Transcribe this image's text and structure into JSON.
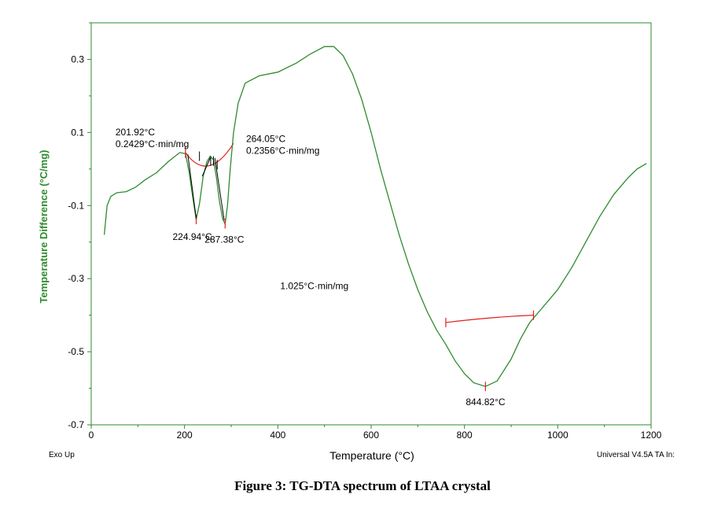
{
  "chart_data": {
    "type": "line",
    "xlabel": "Temperature (°C)",
    "ylabel": "Temperature Difference (°C/mg)",
    "xlim": [
      0,
      1200
    ],
    "ylim": [
      -0.7,
      0.4
    ],
    "x_ticks": [
      "0",
      "200",
      "400",
      "600",
      "800",
      "1000",
      "1200"
    ],
    "y_ticks": [
      "0.3",
      "0.1",
      "-0.1",
      "-0.3",
      "-0.5",
      "-0.7"
    ],
    "line_color": "#2e8b2e",
    "annotation_color": "#e02020",
    "grid": false,
    "series": [
      {
        "x": [
          28,
          34,
          42,
          55,
          75,
          95,
          115,
          140,
          165,
          190,
          202,
          210,
          218,
          225,
          232,
          240,
          248,
          255,
          262,
          268,
          275,
          282,
          287,
          292,
          298,
          305,
          315,
          330,
          360,
          400,
          440,
          470,
          500,
          520,
          540,
          560,
          580,
          600,
          620,
          640,
          660,
          680,
          700,
          720,
          740,
          760,
          780,
          800,
          820,
          845,
          870,
          900,
          920,
          940,
          960,
          980,
          1000,
          1030,
          1060,
          1090,
          1120,
          1150,
          1170,
          1190
        ],
        "y": [
          -0.18,
          -0.1,
          -0.075,
          -0.065,
          -0.062,
          -0.05,
          -0.03,
          -0.01,
          0.02,
          0.045,
          0.042,
          -0.01,
          -0.08,
          -0.138,
          -0.095,
          -0.02,
          0.02,
          0.035,
          0.025,
          -0.02,
          -0.09,
          -0.138,
          -0.15,
          -0.1,
          0.0,
          0.1,
          0.18,
          0.235,
          0.255,
          0.265,
          0.29,
          0.315,
          0.335,
          0.335,
          0.31,
          0.26,
          0.19,
          0.1,
          0.0,
          -0.09,
          -0.18,
          -0.26,
          -0.33,
          -0.39,
          -0.44,
          -0.48,
          -0.525,
          -0.56,
          -0.585,
          -0.595,
          -0.58,
          -0.52,
          -0.465,
          -0.42,
          -0.39,
          -0.36,
          -0.33,
          -0.27,
          -0.2,
          -0.13,
          -0.07,
          -0.025,
          0.0,
          0.015
        ]
      }
    ],
    "annotations": [
      {
        "x": 202,
        "y": 0.045,
        "lines": [
          "201.92°C",
          "0.2429°C·min/mg"
        ]
      },
      {
        "x": 225,
        "y": -0.138,
        "lines": [
          "224.94°C"
        ]
      },
      {
        "x": 287,
        "y": -0.15,
        "lines": [
          "287.38°C"
        ]
      },
      {
        "x": 305,
        "y": 0.07,
        "lines": [
          "264.05°C",
          "0.2356°C·min/mg"
        ]
      },
      {
        "x": 845,
        "y": -0.595,
        "lines": [
          "844.82°C"
        ]
      },
      {
        "x": 850,
        "y": -0.4,
        "lines": [
          "1.025°C·min/mg"
        ]
      }
    ]
  },
  "footer": {
    "left": "Exo Up",
    "right": "Universal V4.5A TA In:"
  },
  "caption": "Figure 3: TG-DTA spectrum of LTAA crystal"
}
